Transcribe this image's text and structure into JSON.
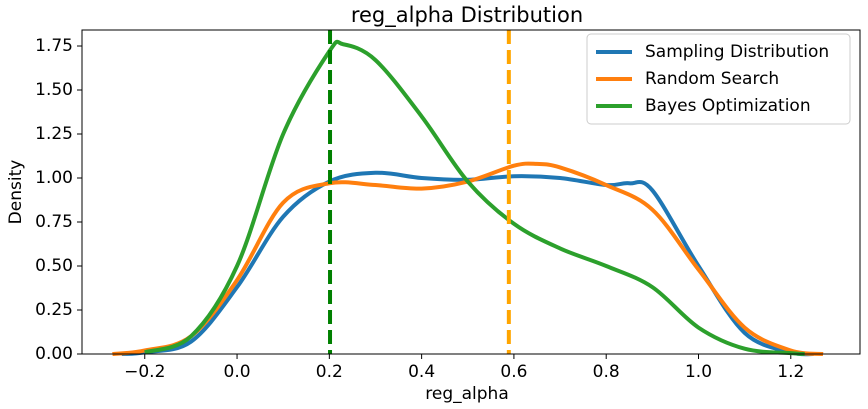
{
  "chart_data": {
    "type": "line",
    "title": "reg_alpha Distribution",
    "xlabel": "reg_alpha",
    "ylabel": "Density",
    "xlim": [
      -0.336,
      1.35
    ],
    "ylim": [
      0,
      1.841
    ],
    "xticks": [
      {
        "value": -0.2,
        "label": "−0.2"
      },
      {
        "value": 0,
        "label": "0.0"
      },
      0.2,
      0.4,
      0.6,
      0.8,
      {
        "value": 1,
        "label": "1.0"
      },
      1.2
    ],
    "yticks": [
      {
        "value": 0,
        "label": "0.00"
      },
      {
        "value": 0.25,
        "label": "0.25"
      },
      {
        "value": 0.5,
        "label": "0.50"
      },
      {
        "value": 0.75,
        "label": "0.75"
      },
      {
        "value": 1,
        "label": "1.00"
      },
      {
        "value": 1.25,
        "label": "1.25"
      },
      {
        "value": 1.5,
        "label": "1.50"
      },
      {
        "value": 1.75,
        "label": "1.75"
      }
    ],
    "legend": "upper right",
    "series": [
      {
        "name": "Sampling Distribution",
        "color": "#1f77b4",
        "x": [
          -0.25,
          -0.2,
          -0.1,
          0,
          0.1,
          0.2,
          0.3,
          0.4,
          0.5,
          0.6,
          0.7,
          0.8,
          0.85,
          0.9,
          1.0,
          1.1,
          1.2,
          1.25
        ],
        "values": [
          0,
          0.01,
          0.07,
          0.38,
          0.78,
          0.98,
          1.03,
          1.0,
          0.99,
          1.01,
          1.0,
          0.96,
          0.97,
          0.93,
          0.5,
          0.12,
          0.01,
          0
        ]
      },
      {
        "name": "Random Search",
        "color": "#ff7f0e",
        "x": [
          -0.27,
          -0.2,
          -0.1,
          0,
          0.1,
          0.2,
          0.3,
          0.4,
          0.5,
          0.6,
          0.65,
          0.7,
          0.8,
          0.9,
          1.0,
          1.1,
          1.2,
          1.27
        ],
        "values": [
          0,
          0.02,
          0.1,
          0.42,
          0.86,
          0.97,
          0.96,
          0.94,
          0.98,
          1.07,
          1.08,
          1.06,
          0.96,
          0.82,
          0.48,
          0.15,
          0.02,
          0
        ]
      },
      {
        "name": "Bayes Optimization",
        "color": "#2ca02c",
        "x": [
          -0.2,
          -0.1,
          0,
          0.1,
          0.2,
          0.23,
          0.3,
          0.4,
          0.5,
          0.6,
          0.7,
          0.8,
          0.9,
          1.0,
          1.1,
          1.2,
          1.23
        ],
        "values": [
          0.01,
          0.1,
          0.5,
          1.25,
          1.72,
          1.76,
          1.67,
          1.35,
          0.98,
          0.74,
          0.6,
          0.5,
          0.38,
          0.15,
          0.03,
          0.005,
          0
        ]
      }
    ],
    "vlines": [
      {
        "x": 0.2015,
        "color": "#008000"
      },
      {
        "x": 0.589,
        "color": "#ffa500"
      }
    ]
  }
}
